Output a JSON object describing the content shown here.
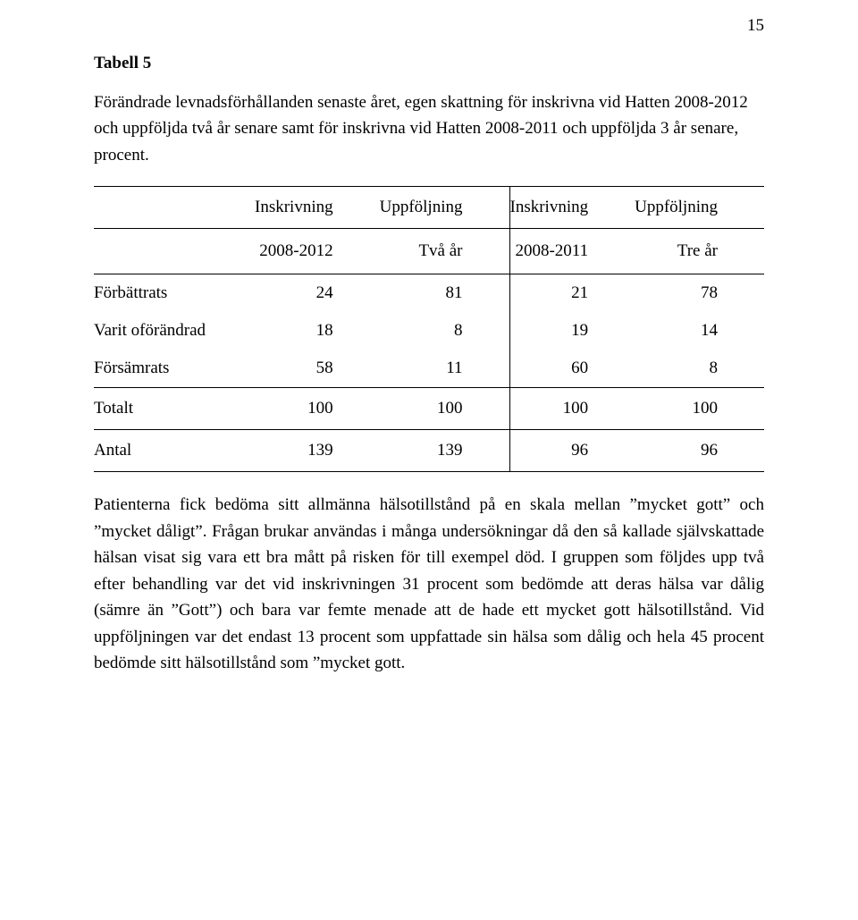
{
  "page_number": "15",
  "title": "Tabell 5",
  "caption": "Förändrade levnadsförhållanden senaste året, egen skattning för inskrivna vid Hatten 2008-2012 och uppföljda två år senare samt för inskrivna vid Hatten 2008-2011 och uppföljda 3 år senare, procent.",
  "table": {
    "headers": {
      "c1": "Inskrivning",
      "c2": "Uppföljning",
      "c3": "Inskrivning",
      "c4": "Uppföljning"
    },
    "subheaders": {
      "c1": "2008-2012",
      "c2": "Två år",
      "c3": "2008-2011",
      "c4": "Tre år"
    },
    "rows": [
      {
        "label": "Förbättrats",
        "c1": "24",
        "c2": "81",
        "c3": "21",
        "c4": "78"
      },
      {
        "label": "Varit oförändrad",
        "c1": "18",
        "c2": "8",
        "c3": "19",
        "c4": "14"
      },
      {
        "label": "Försämrats",
        "c1": "58",
        "c2": "11",
        "c3": "60",
        "c4": "8"
      }
    ],
    "total": {
      "label": "Totalt",
      "c1": "100",
      "c2": "100",
      "c3": "100",
      "c4": "100"
    },
    "antal": {
      "label": "Antal",
      "c1": "139",
      "c2": "139",
      "c3": "96",
      "c4": "96"
    }
  },
  "body": "Patienterna fick bedöma sitt allmänna hälsotillstånd på en skala mellan ”mycket gott” och ”mycket dåligt”. Frågan brukar användas i många undersökningar då den så kallade självskattade hälsan visat sig vara ett bra mått på risken för till exempel död. I gruppen som följdes upp två efter behandling var det vid inskrivningen 31 procent som bedömde att deras hälsa var dålig (sämre än ”Gott”) och bara var femte menade att de hade ett mycket gott hälsotillstånd. Vid uppföljningen var det endast 13 procent som uppfattade sin hälsa som dålig och hela 45 procent bedömde sitt hälsotillstånd som ”mycket gott."
}
